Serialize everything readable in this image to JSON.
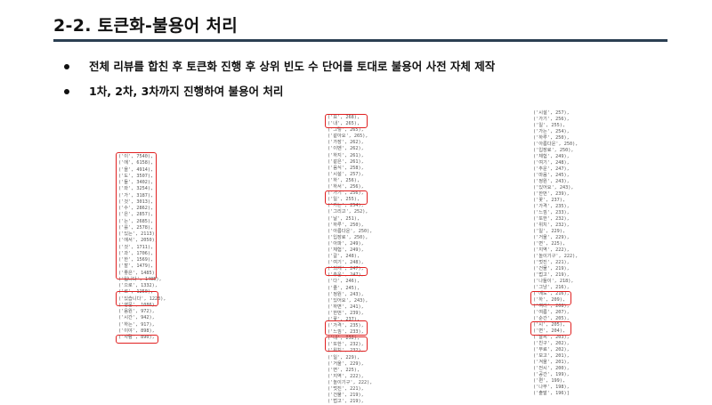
{
  "header": {
    "title": "2-2. 토큰화-불용어 처리"
  },
  "bullets": [
    "전체 리뷰를 합친 후 토큰화 진행 후 상위 빈도 수 단어를 토대로 불용어 사전 자체 제작",
    "1차, 2차, 3차까지 진행하여 불용어 처리"
  ],
  "columns": [
    [
      "('이', 7540),",
      "('에', 6158),",
      "('을', 4914),",
      "('도', 3507),",
      "('들', 3402),",
      "('와', 3254),",
      "('가', 3187),",
      "('것', 3013),",
      "('수', 2862),",
      "('은', 2857),",
      "('는', 2685),",
      "('를', 2578),",
      "('있는', 2113),",
      "('에서', 2050),",
      "('것', 1711),",
      "('과', 1706),",
      "('한', 1569),",
      "('할', 1479),",
      "('좋은', 1485),",
      "('입니다', 1405),",
      "('으로', 1332),",
      "('로', 1250),",
      "('있습니다', 1223),",
      "('영문', 1086),",
      "('음원', 972),",
      "('시간', 942),",
      "('하는', 917),",
      "('이야', 898),",
      "('사람', 890),"
    ],
    [
      "('요', 268),",
      "('내', 265),",
      "('그렇', 265),",
      "('같아요', 265),",
      "('가장', 262),",
      "('이벤', 262),",
      "('하지', 261),",
      "('같은', 261),",
      "('음식', 258),",
      "('시설', 257),",
      "('하', 256),",
      "('하서', 256),",
      "('가기', 256),",
      "('일', 255),",
      "('가는', 254),",
      "('그리고', 252),",
      "('날', 251),",
      "('하루', 250),",
      "('아름다운', 250),",
      "('입장료', 250),",
      "('아파', 249),",
      "('체험', 249),",
      "('갈', 248),",
      "('여기', 248),",
      "('되게', 247),",
      "('추운', 247),",
      "('다', 246),",
      "('줄', 245),",
      "('정원', 243),",
      "('있어요', 243),",
      "('하면', 241),",
      "('한번', 239),",
      "('꽃', 237),",
      "('가격', 235),",
      "('느낌', 233),",
      "('내', 232),",
      "('또한', 232),",
      "('위치', 232),",
      "('일', 229),",
      "('거울', 229),",
      "('면', 225),",
      "('지역', 222),",
      "('놀이기구', 222),",
      "('멋진', 221),",
      "('건물', 219),",
      "('법고', 219),"
    ],
    [
      "('시설', 257),",
      "('가기', 256),",
      "('일', 255),",
      "('가는', 254),",
      "('하루', 250),",
      "('아름다운', 250),",
      "('입장료', 250),",
      "('체험', 249),",
      "('여기', 248),",
      "('추운', 247),",
      "('마음', 245),",
      "('정원', 243),",
      "('있어요', 243),",
      "('한번', 239),",
      "('꽃', 237),",
      "('가격', 235),",
      "('느낌', 233),",
      "('또한', 232),",
      "('위치', 232),",
      "('일', 229),",
      "('거울', 229),",
      "('면', 225),",
      "('지역', 222),",
      "('놀이기구', 222),",
      "('멋진', 221),",
      "('건물', 219),",
      "('법고', 219),",
      "('나들이', 218),",
      "('그냥', 216),",
      "('에도', 216),",
      "('하', 209),",
      "('여러', 208),",
      "('여름', 207),",
      "('순간', 205),",
      "('시', 205),",
      "('면', 204),",
      "('날씨', 203),",
      "('친구', 202),",
      "('무료', 202),",
      "('보고', 201),",
      "('겨울', 201),",
      "('전시', 200),",
      "('공간', 199),",
      "('편', 199),",
      "('나무', 198),",
      "('출발', 196)]"
    ]
  ]
}
